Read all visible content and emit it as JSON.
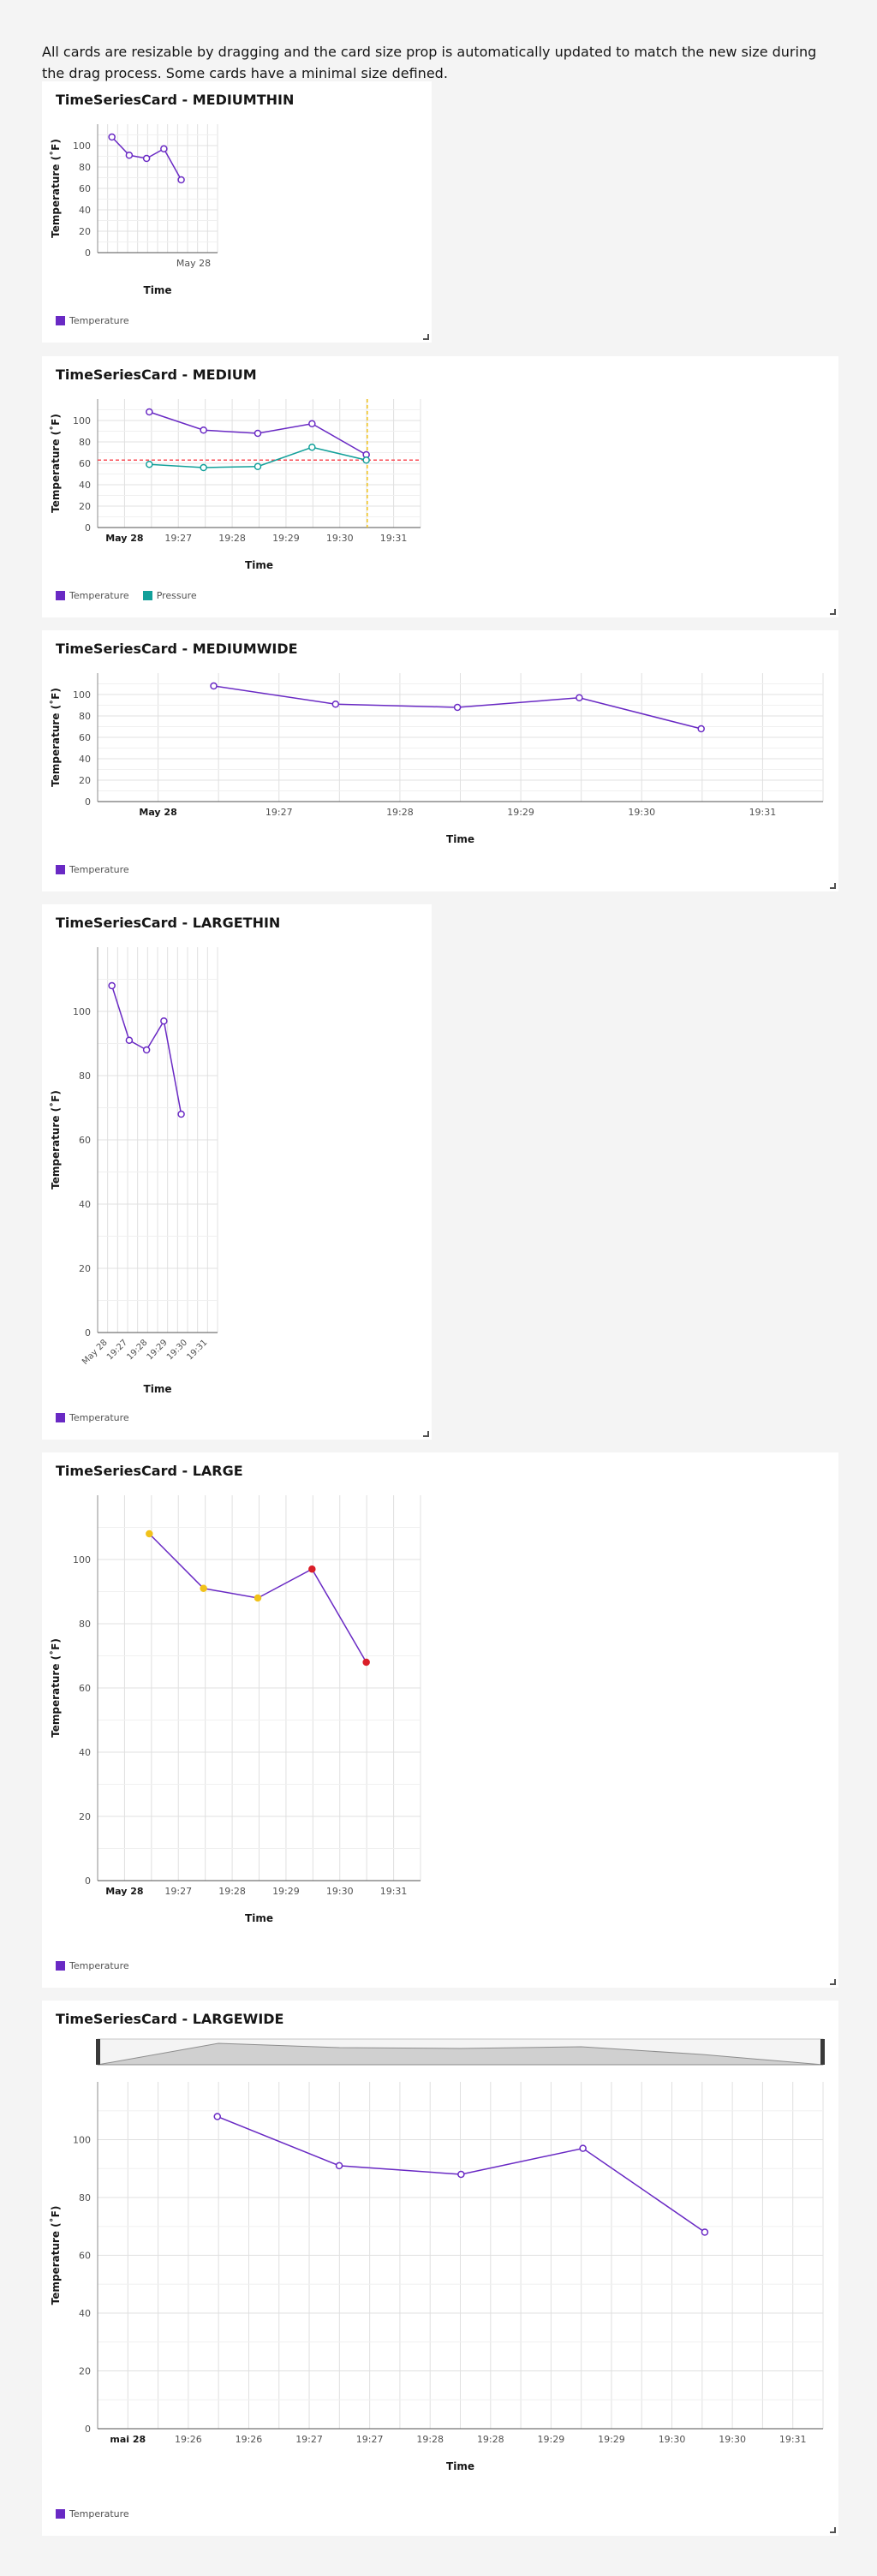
{
  "intro_text": "All cards are resizable by dragging and the card size prop is automatically updated to match the new size during the drag process. Some cards have a minimal size defined.",
  "colors": {
    "temperature": "#6929c4",
    "pressure": "#1192e8",
    "pressure_line": "#12a09a",
    "threshold": "#fa4d56",
    "today": "#f1c21b",
    "alert_red": "#da1e28",
    "alert_yellow": "#f1c21b"
  },
  "cards": [
    {
      "title": "TimeSeriesCard - MEDIUMTHIN",
      "legend": [
        {
          "label": "Temperature",
          "color": "#6929c4"
        }
      ],
      "chart_data": {
        "type": "line",
        "x_label": "Time",
        "y_label": "Temperature (˚F)",
        "y_ticks": [
          0,
          20,
          40,
          60,
          80,
          100
        ],
        "x_ticks": [
          "May 28"
        ],
        "series": [
          {
            "name": "Temperature",
            "values": [
              108,
              91,
              88,
              97,
              68
            ]
          }
        ]
      }
    },
    {
      "title": "TimeSeriesCard - MEDIUM",
      "legend": [
        {
          "label": "Temperature",
          "color": "#6929c4"
        },
        {
          "label": "Pressure",
          "color": "#12a09a"
        }
      ],
      "chart_data": {
        "type": "line",
        "x_label": "Time",
        "y_label": "Temperature (˚F)",
        "y_ticks": [
          0,
          20,
          40,
          60,
          80,
          100
        ],
        "x_ticks": [
          "May 28",
          "19:27",
          "19:28",
          "19:29",
          "19:30",
          "19:31"
        ],
        "series": [
          {
            "name": "Temperature",
            "values": [
              108,
              91,
              88,
              97,
              68
            ]
          },
          {
            "name": "Pressure",
            "values": [
              59,
              56,
              57,
              75,
              63
            ]
          }
        ],
        "threshold": 63
      }
    },
    {
      "title": "TimeSeriesCard - MEDIUMWIDE",
      "legend": [
        {
          "label": "Temperature",
          "color": "#6929c4"
        }
      ],
      "chart_data": {
        "type": "line",
        "x_label": "Time",
        "y_label": "Temperature (˚F)",
        "y_ticks": [
          0,
          20,
          40,
          60,
          80,
          100
        ],
        "x_ticks": [
          "May 28",
          "19:27",
          "19:28",
          "19:29",
          "19:30",
          "19:31"
        ],
        "series": [
          {
            "name": "Temperature",
            "values": [
              108,
              91,
              88,
              97,
              68
            ]
          }
        ]
      }
    },
    {
      "title": "TimeSeriesCard - LARGETHIN",
      "legend": [
        {
          "label": "Temperature",
          "color": "#6929c4"
        }
      ],
      "chart_data": {
        "type": "line",
        "x_label": "Time",
        "y_label": "Temperature (˚F)",
        "y_ticks": [
          0,
          20,
          40,
          60,
          80,
          100
        ],
        "x_ticks": [
          "May 28",
          "19:27",
          "19:28",
          "19:29",
          "19:30",
          "19:31"
        ],
        "series": [
          {
            "name": "Temperature",
            "values": [
              108,
              91,
              88,
              97,
              68
            ]
          }
        ]
      }
    },
    {
      "title": "TimeSeriesCard - LARGE",
      "legend": [
        {
          "label": "Temperature",
          "color": "#6929c4"
        }
      ],
      "chart_data": {
        "type": "scatter-line",
        "x_label": "Time",
        "y_label": "Temperature (˚F)",
        "y_ticks": [
          0,
          20,
          40,
          60,
          80,
          100
        ],
        "x_ticks": [
          "May 28",
          "19:27",
          "19:28",
          "19:29",
          "19:30",
          "19:31"
        ],
        "series": [
          {
            "name": "Temperature",
            "values": [
              108,
              91,
              88,
              97,
              68
            ]
          }
        ],
        "point_colors": [
          "#f1c21b",
          "#f1c21b",
          "#f1c21b",
          "#da1e28",
          "#da1e28"
        ]
      }
    },
    {
      "title": "TimeSeriesCard - LARGEWIDE",
      "legend": [
        {
          "label": "Temperature",
          "color": "#6929c4"
        }
      ],
      "chart_data": {
        "type": "line",
        "x_label": "Time",
        "y_label": "Temperature (˚F)",
        "y_ticks": [
          0,
          20,
          40,
          60,
          80,
          100
        ],
        "x_ticks": [
          "mai 28",
          "19:26",
          "19:26",
          "19:27",
          "19:27",
          "19:28",
          "19:28",
          "19:29",
          "19:29",
          "19:30",
          "19:30",
          "19:31"
        ],
        "series": [
          {
            "name": "Temperature",
            "values": [
              108,
              91,
              88,
              97,
              68
            ]
          }
        ],
        "zoom_bar": true
      }
    }
  ]
}
